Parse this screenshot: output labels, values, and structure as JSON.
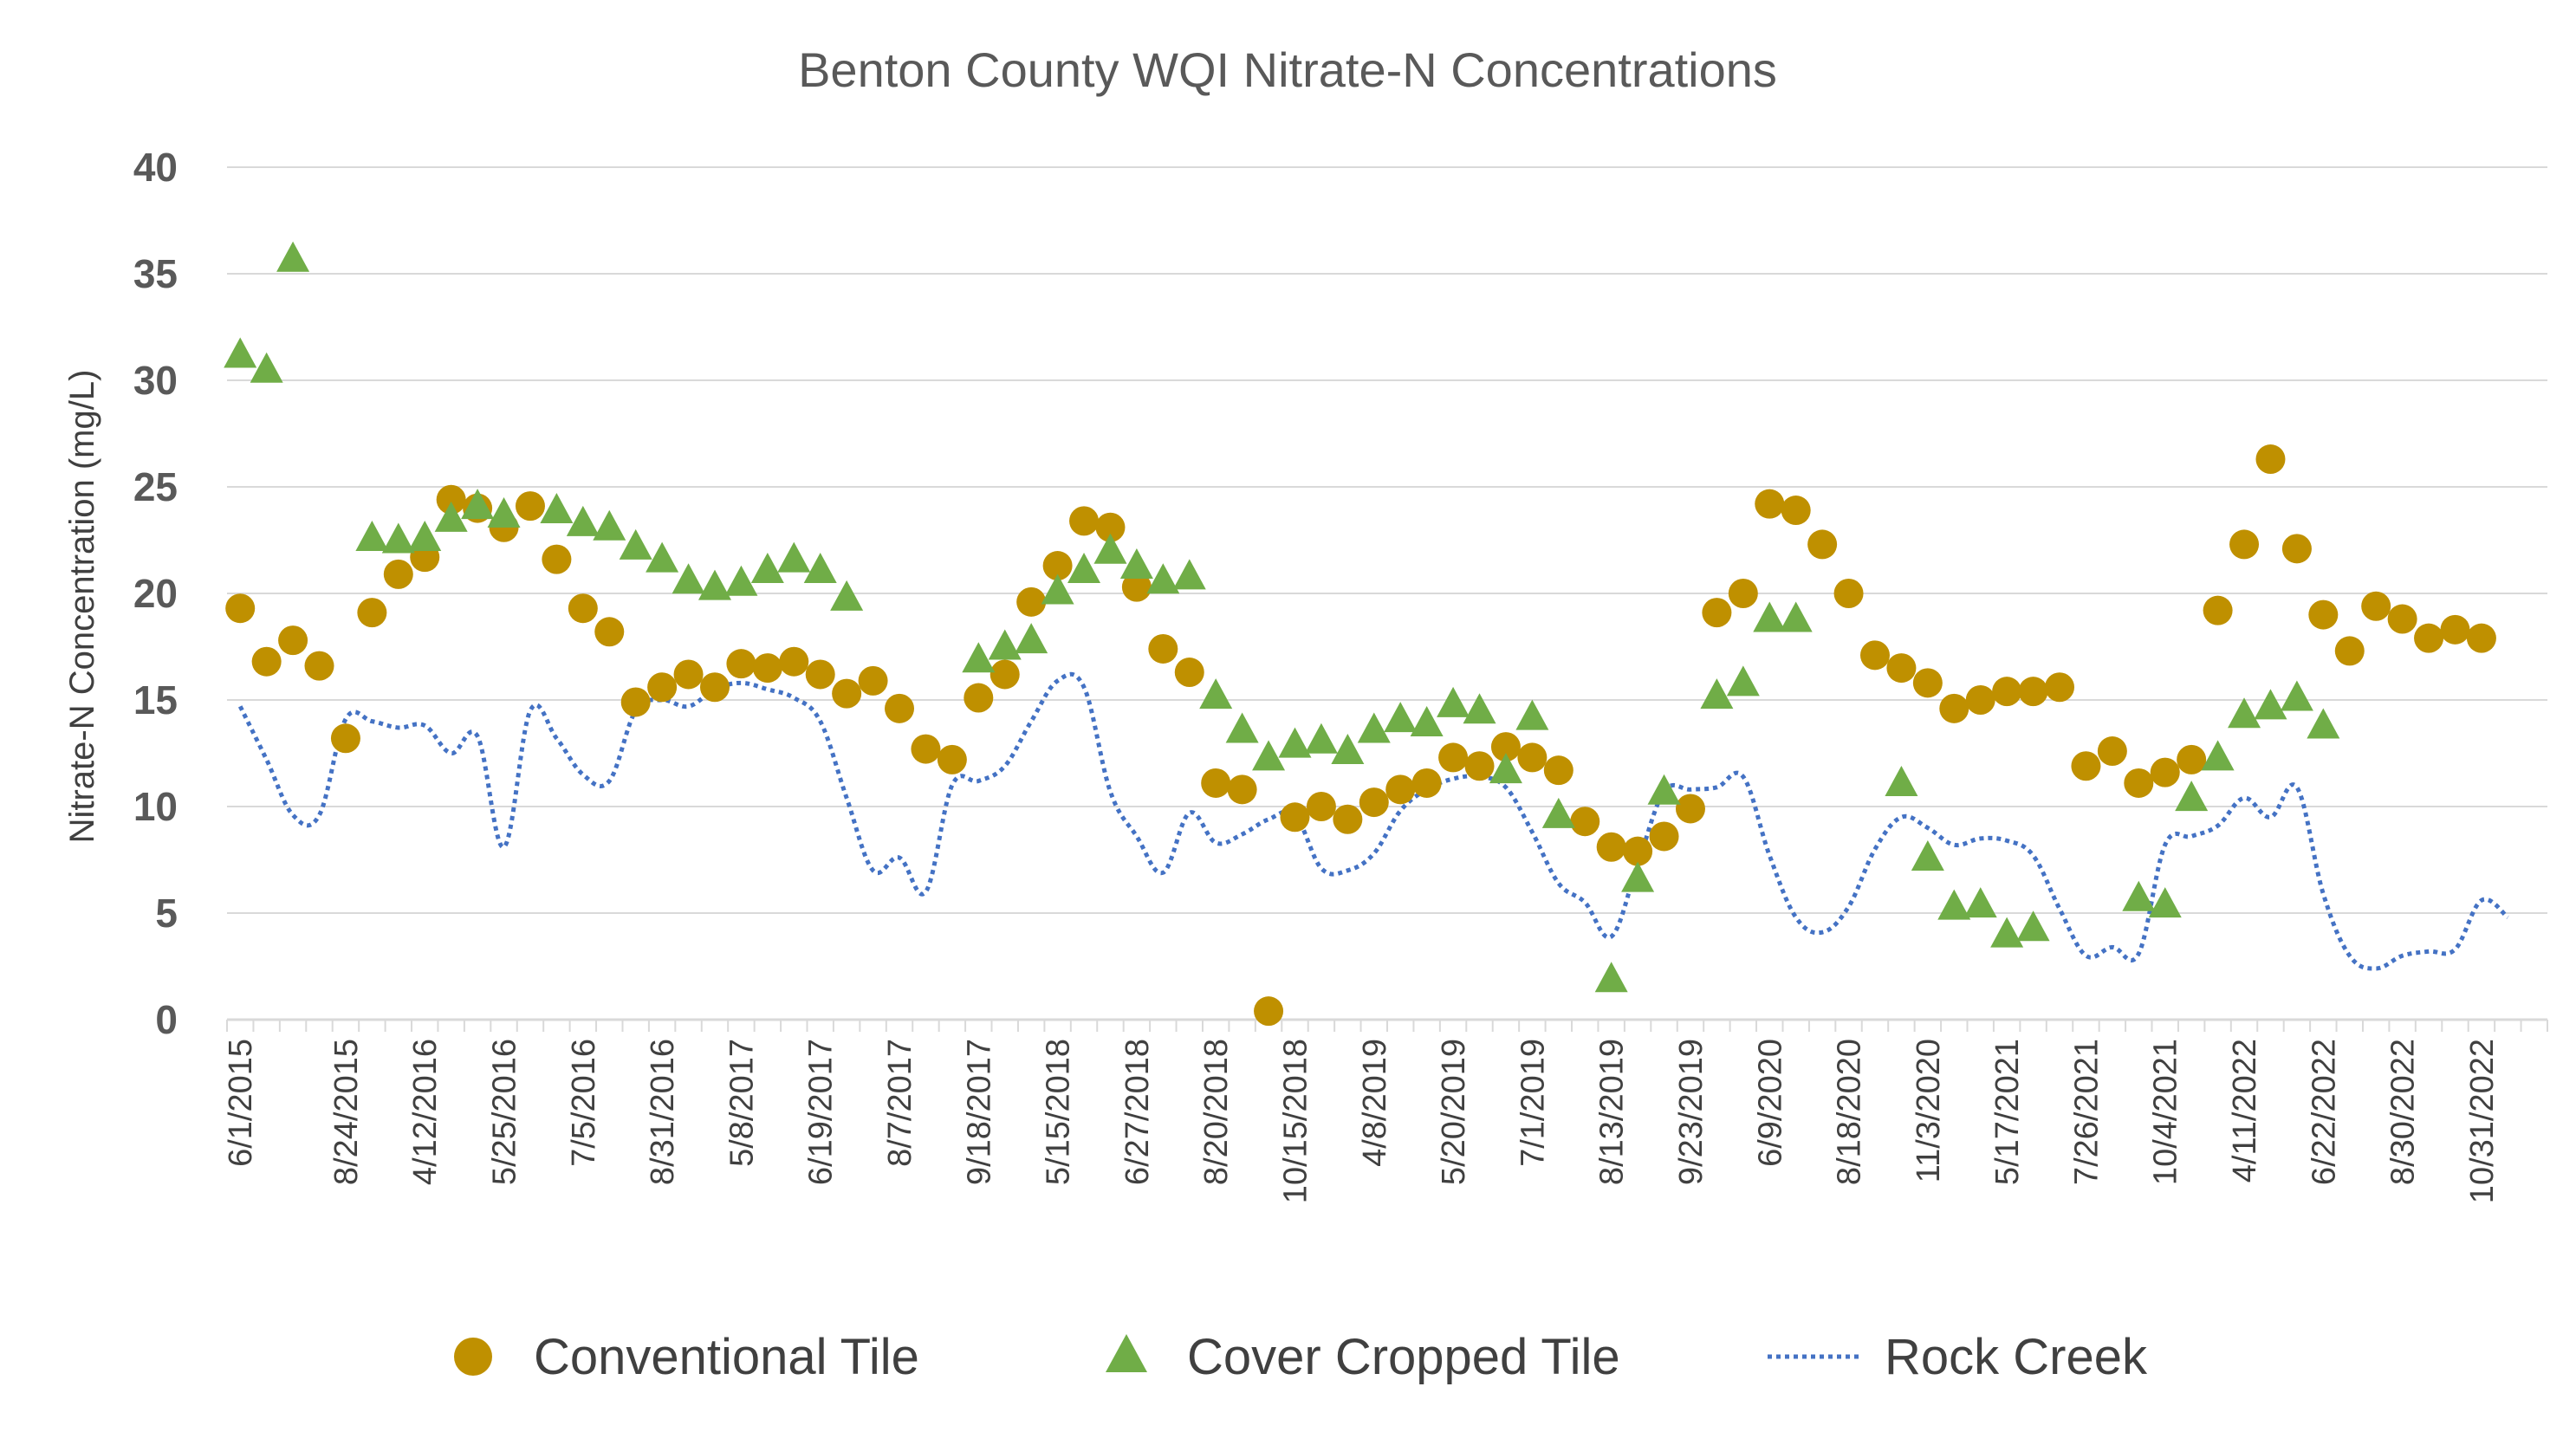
{
  "chart_data": {
    "type": "scatter",
    "title": "Benton County WQI Nitrate-N Concentrations",
    "ylabel": "Nitrate-N Concentration (mg/L)",
    "xlabel": "",
    "ylim": [
      0,
      40
    ],
    "yticks": [
      "0",
      "5",
      "10",
      "15",
      "20",
      "25",
      "30",
      "35",
      "40"
    ],
    "grid": true,
    "legend_position": "bottom",
    "x_count": 88,
    "x_tick_labels": [
      {
        "i": 0,
        "label": "6/1/2015"
      },
      {
        "i": 4,
        "label": "8/24/2015"
      },
      {
        "i": 7,
        "label": "4/12/2016"
      },
      {
        "i": 10,
        "label": "5/25/2016"
      },
      {
        "i": 13,
        "label": "7/5/2016"
      },
      {
        "i": 16,
        "label": "8/31/2016"
      },
      {
        "i": 19,
        "label": "5/8/2017"
      },
      {
        "i": 22,
        "label": "6/19/2017"
      },
      {
        "i": 25,
        "label": "8/7/2017"
      },
      {
        "i": 28,
        "label": "9/18/2017"
      },
      {
        "i": 31,
        "label": "5/15/2018"
      },
      {
        "i": 34,
        "label": "6/27/2018"
      },
      {
        "i": 37,
        "label": "8/20/2018"
      },
      {
        "i": 40,
        "label": "10/15/2018"
      },
      {
        "i": 43,
        "label": "4/8/2019"
      },
      {
        "i": 46,
        "label": "5/20/2019"
      },
      {
        "i": 49,
        "label": "7/1/2019"
      },
      {
        "i": 52,
        "label": "8/13/2019"
      },
      {
        "i": 55,
        "label": "9/23/2019"
      },
      {
        "i": 58,
        "label": "6/9/2020"
      },
      {
        "i": 61,
        "label": "8/18/2020"
      },
      {
        "i": 64,
        "label": "11/3/2020"
      },
      {
        "i": 67,
        "label": "5/17/2021"
      },
      {
        "i": 70,
        "label": "7/26/2021"
      },
      {
        "i": 73,
        "label": "10/4/2021"
      },
      {
        "i": 76,
        "label": "4/11/2022"
      },
      {
        "i": 79,
        "label": "6/22/2022"
      },
      {
        "i": 82,
        "label": "8/30/2022"
      },
      {
        "i": 85,
        "label": "10/31/2022"
      }
    ],
    "series": [
      {
        "name": "Conventional Tile",
        "marker": "circle",
        "color": "#bf9000",
        "values": [
          19.3,
          16.8,
          17.8,
          16.6,
          13.2,
          19.1,
          20.9,
          21.7,
          24.4,
          24.0,
          23.1,
          24.1,
          21.6,
          19.3,
          18.2,
          14.9,
          15.6,
          16.2,
          15.6,
          16.7,
          16.5,
          16.8,
          16.2,
          15.3,
          15.9,
          14.6,
          12.7,
          12.2,
          15.1,
          16.2,
          19.6,
          21.3,
          23.4,
          23.1,
          20.3,
          17.4,
          16.3,
          11.1,
          10.8,
          0.4,
          9.5,
          10.0,
          9.4,
          10.2,
          10.8,
          11.1,
          12.3,
          11.9,
          12.8,
          12.3,
          11.7,
          9.3,
          8.1,
          7.9,
          8.6,
          9.9,
          19.1,
          20.0,
          24.2,
          23.9,
          22.3,
          20.0,
          17.1,
          16.5,
          15.8,
          14.6,
          15.0,
          15.4,
          15.4,
          15.6,
          11.9,
          12.6,
          11.1,
          11.6,
          12.2,
          19.2,
          22.3,
          26.3,
          22.1,
          19.0,
          17.3,
          19.4,
          18.8,
          17.9,
          18.3,
          17.9
        ],
        "x_index": [
          0,
          1,
          2,
          3,
          4,
          5,
          6,
          7,
          8,
          9,
          10,
          11,
          12,
          13,
          14,
          15,
          16,
          17,
          18,
          19,
          20,
          21,
          22,
          23,
          24,
          25,
          26,
          27,
          28,
          29,
          30,
          31,
          32,
          33,
          34,
          35,
          36,
          37,
          38,
          39,
          40,
          41,
          42,
          43,
          44,
          45,
          46,
          47,
          48,
          49,
          50,
          51,
          52,
          53,
          54,
          55,
          56,
          57,
          58,
          59,
          60,
          61,
          62,
          63,
          64,
          65,
          66,
          67,
          68,
          69,
          70,
          71,
          72,
          73,
          74,
          75,
          76,
          77,
          78,
          79,
          80,
          81,
          82,
          83,
          84,
          85
        ]
      },
      {
        "name": "Cover Cropped Tile",
        "marker": "triangle",
        "color": "#70ad47",
        "values": [
          31.2,
          30.5,
          35.7,
          22.6,
          22.5,
          22.6,
          23.5,
          24.1,
          23.7,
          23.9,
          23.3,
          23.1,
          22.2,
          21.6,
          20.6,
          20.3,
          20.5,
          21.1,
          21.6,
          21.1,
          19.8,
          16.9,
          17.5,
          17.8,
          20.1,
          21.1,
          22.0,
          21.3,
          20.6,
          20.8,
          15.2,
          13.6,
          12.3,
          12.9,
          13.1,
          12.6,
          13.6,
          14.1,
          13.9,
          14.8,
          14.5,
          11.7,
          14.2,
          9.6,
          1.9,
          6.6,
          10.7,
          15.2,
          15.8,
          18.8,
          18.8,
          11.1,
          7.6,
          5.3,
          5.4,
          4.0,
          4.3,
          5.7,
          5.4,
          10.4,
          12.3,
          14.3,
          14.7,
          15.1,
          13.8
        ],
        "x_index": [
          0,
          1,
          2,
          5,
          6,
          7,
          8,
          9,
          10,
          12,
          13,
          14,
          15,
          16,
          17,
          18,
          19,
          20,
          21,
          22,
          23,
          28,
          29,
          30,
          31,
          32,
          33,
          34,
          35,
          36,
          37,
          38,
          39,
          40,
          41,
          42,
          43,
          44,
          45,
          46,
          47,
          48,
          49,
          50,
          52,
          53,
          54,
          56,
          57,
          58,
          59,
          63,
          64,
          65,
          66,
          67,
          68,
          72,
          73,
          74,
          75,
          76,
          77,
          78,
          79
        ]
      },
      {
        "name": "Rock Creek",
        "marker": "dotted-line",
        "color": "#4472c4",
        "values": [
          14.7,
          12.2,
          9.6,
          9.6,
          14.1,
          14.0,
          13.7,
          13.8,
          12.5,
          13.3,
          8.1,
          14.5,
          13.2,
          11.5,
          11.2,
          14.5,
          15.0,
          14.7,
          15.5,
          15.8,
          15.5,
          15.1,
          14.0,
          10.4,
          7.0,
          7.6,
          6.0,
          11.0,
          11.2,
          11.9,
          14.0,
          15.9,
          15.6,
          10.7,
          8.6,
          6.9,
          9.7,
          8.3,
          8.7,
          9.4,
          9.6,
          7.1,
          7.0,
          7.8,
          9.8,
          10.8,
          11.3,
          11.4,
          10.9,
          8.8,
          6.4,
          5.5,
          3.9,
          7.3,
          10.7,
          10.8,
          10.9,
          11.4,
          7.7,
          4.8,
          4.1,
          5.3,
          8.0,
          9.5,
          9.0,
          8.2,
          8.5,
          8.4,
          7.7,
          5.2,
          3.0,
          3.4,
          3.1,
          8.2,
          8.6,
          9.1,
          10.4,
          9.5,
          10.9,
          5.9,
          3.0,
          2.4,
          3.0,
          3.2,
          3.3,
          5.6,
          4.8
        ],
        "x_index": [
          0,
          1,
          2,
          3,
          4,
          5,
          6,
          7,
          8,
          9,
          10,
          11,
          12,
          13,
          14,
          15,
          16,
          17,
          18,
          19,
          20,
          21,
          22,
          23,
          24,
          25,
          26,
          27,
          28,
          29,
          30,
          31,
          32,
          33,
          34,
          35,
          36,
          37,
          38,
          39,
          40,
          41,
          42,
          43,
          44,
          45,
          46,
          47,
          48,
          49,
          50,
          51,
          52,
          53,
          54,
          55,
          56,
          57,
          58,
          59,
          60,
          61,
          62,
          63,
          64,
          65,
          66,
          67,
          68,
          69,
          70,
          71,
          72,
          73,
          74,
          75,
          76,
          77,
          78,
          79,
          80,
          81,
          82,
          83,
          84,
          85,
          86
        ]
      }
    ]
  }
}
